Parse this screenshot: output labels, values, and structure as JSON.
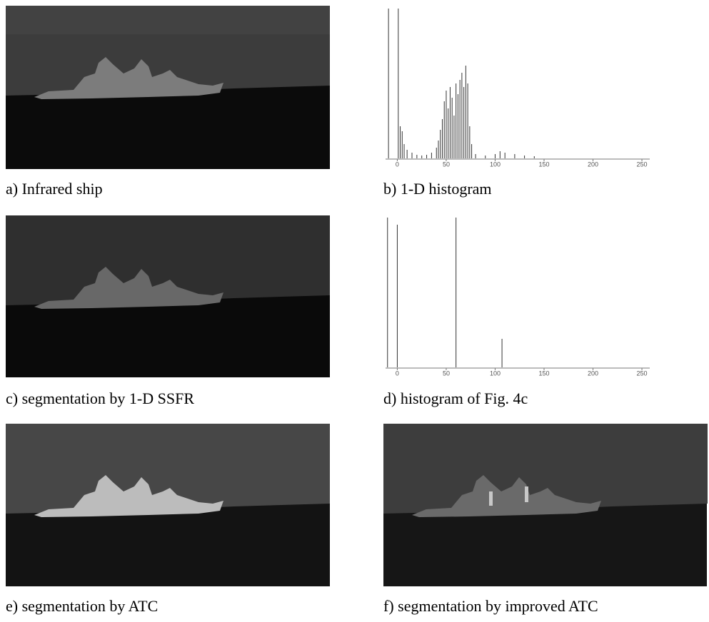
{
  "panels": [
    {
      "caption": "a) Infrared ship"
    },
    {
      "caption": "b) 1-D histogram",
      "chart": {
        "type": "bar",
        "x": [
          -9,
          1,
          3,
          5,
          7,
          10,
          15,
          20,
          25,
          30,
          35,
          40,
          42,
          44,
          46,
          48,
          50,
          52,
          54,
          56,
          58,
          60,
          62,
          64,
          66,
          68,
          70,
          72,
          74,
          76,
          80,
          90,
          100,
          105,
          110,
          120,
          130,
          140
        ],
        "values": [
          210,
          210,
          45,
          38,
          20,
          12,
          8,
          5,
          4,
          5,
          8,
          15,
          25,
          40,
          55,
          80,
          95,
          70,
          100,
          85,
          60,
          105,
          90,
          110,
          120,
          100,
          130,
          105,
          45,
          20,
          6,
          4,
          6,
          10,
          8,
          6,
          4,
          3
        ],
        "xlim": [
          -12,
          258
        ],
        "ylim": [
          0,
          210
        ],
        "xticks": [
          0,
          50,
          100,
          150,
          200,
          250
        ]
      }
    },
    {
      "caption": "c) segmentation by 1-D SSFR"
    },
    {
      "caption": "d) histogram of Fig. 4c",
      "chart": {
        "type": "bar",
        "x": [
          -10,
          0,
          60,
          107
        ],
        "values": [
          210,
          200,
          210,
          40
        ],
        "xlim": [
          -12,
          258
        ],
        "ylim": [
          0,
          210
        ],
        "xticks": [
          0,
          50,
          100,
          150,
          200,
          250
        ]
      }
    },
    {
      "caption": "e) segmentation by ATC"
    },
    {
      "caption": "f) segmentation by improved ATC"
    }
  ]
}
